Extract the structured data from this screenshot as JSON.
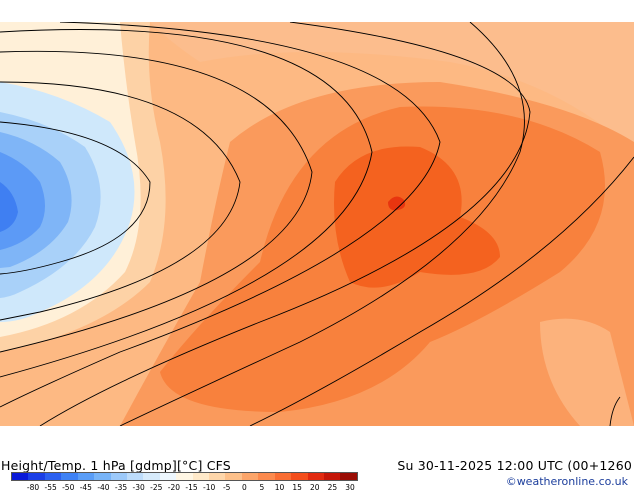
{
  "title": "Height/Temp. 1 hPa [gdmp][°C] CFS",
  "valid_time": "Su 30-11-2025 12:00 UTC (00+1260",
  "credit": "©weatheronline.co.uk",
  "legend": {
    "ticks": [
      "-80",
      "-55",
      "-50",
      "-45",
      "-40",
      "-35",
      "-30",
      "-25",
      "-20",
      "-15",
      "-10",
      "-5",
      "0",
      "5",
      "10",
      "15",
      "20",
      "25",
      "30"
    ],
    "colors": [
      "#0a1ad8",
      "#1b3fe6",
      "#2c60f0",
      "#3f82f5",
      "#5a9df7",
      "#78b4f8",
      "#9cc9fa",
      "#bddcfb",
      "#d7ebfc",
      "#eef7fe",
      "#fff6e4",
      "#ffe9c9",
      "#fed6aa",
      "#fdc08a",
      "#fca56a",
      "#fb8a4e",
      "#f96d33",
      "#f44e1c",
      "#e22a10",
      "#c51608",
      "#9a0c04"
    ]
  }
}
